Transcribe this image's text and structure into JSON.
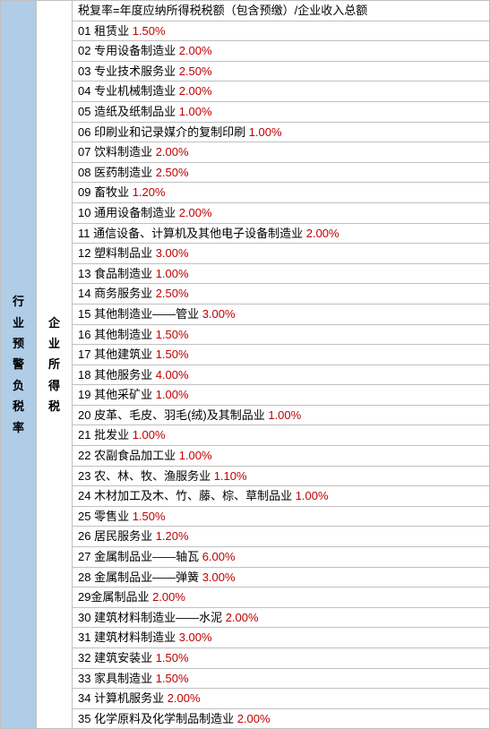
{
  "header_left": "行业预警负税率",
  "header_mid": "企业所得税",
  "formula": "税复率=年度应纳所得税税额（包含预缴）/企业收入总额",
  "items": [
    {
      "num": "01",
      "name": "租赁业",
      "rate": "1.50%"
    },
    {
      "num": "02",
      "name": "专用设备制造业",
      "rate": "2.00%"
    },
    {
      "num": "03",
      "name": "专业技术服务业",
      "rate": "2.50%"
    },
    {
      "num": "04",
      "name": "专业机械制造业",
      "rate": "2.00%"
    },
    {
      "num": "05",
      "name": "造纸及纸制品业",
      "rate": "1.00%"
    },
    {
      "num": "06",
      "name": "印刷业和记录媒介的复制印刷",
      "rate": "1.00%"
    },
    {
      "num": "07",
      "name": "饮料制造业",
      "rate": "2.00%"
    },
    {
      "num": "08",
      "name": "医药制造业",
      "rate": "2.50%"
    },
    {
      "num": "09",
      "name": "畜牧业",
      "rate": "1.20%"
    },
    {
      "num": "10",
      "name": "通用设备制造业",
      "rate": "2.00%"
    },
    {
      "num": "11",
      "name": "通信设备、计算机及其他电子设备制造业",
      "rate": "2.00%"
    },
    {
      "num": "12",
      "name": "塑料制品业",
      "rate": "3.00%"
    },
    {
      "num": "13",
      "name": "食品制造业",
      "rate": "1.00%"
    },
    {
      "num": "14",
      "name": "商务服务业",
      "rate": "2.50%"
    },
    {
      "num": "15",
      "name": "其他制造业——管业",
      "rate": "3.00%"
    },
    {
      "num": "16",
      "name": "其他制造业",
      "rate": "1.50%"
    },
    {
      "num": "17",
      "name": "其他建筑业",
      "rate": "1.50%"
    },
    {
      "num": "18",
      "name": "其他服务业",
      "rate": "4.00%"
    },
    {
      "num": "19",
      "name": "其他采矿业",
      "rate": "1.00%"
    },
    {
      "num": "20",
      "name": "皮革、毛皮、羽毛(绒)及其制品业",
      "rate": "1.00%"
    },
    {
      "num": "21",
      "name": "批发业",
      "rate": "1.00%"
    },
    {
      "num": "22",
      "name": "农副食品加工业",
      "rate": "1.00%"
    },
    {
      "num": "23",
      "name": "农、林、牧、渔服务业",
      "rate": "1.10%"
    },
    {
      "num": "24",
      "name": "木材加工及木、竹、藤、棕、草制品业",
      "rate": "1.00%"
    },
    {
      "num": "25",
      "name": "零售业",
      "rate": "1.50%"
    },
    {
      "num": "26",
      "name": "居民服务业",
      "rate": "1.20%"
    },
    {
      "num": "27",
      "name": "金属制品业——轴瓦",
      "rate": "6.00%"
    },
    {
      "num": "28",
      "name": "金属制品业——弹簧",
      "rate": "3.00%"
    },
    {
      "num": "29",
      "name": "金属制品业",
      "rate": "2.00%",
      "nospace": true
    },
    {
      "num": "30",
      "name": "建筑材料制造业——水泥",
      "rate": "2.00%"
    },
    {
      "num": "31",
      "name": "建筑材料制造业",
      "rate": "3.00%"
    },
    {
      "num": "32",
      "name": "建筑安装业",
      "rate": "1.50%"
    },
    {
      "num": "33",
      "name": "家具制造业",
      "rate": "1.50%"
    },
    {
      "num": "34",
      "name": "计算机服务业",
      "rate": "2.00%"
    },
    {
      "num": "35",
      "name": "化学原料及化学制品制造业",
      "rate": "2.00%"
    }
  ]
}
